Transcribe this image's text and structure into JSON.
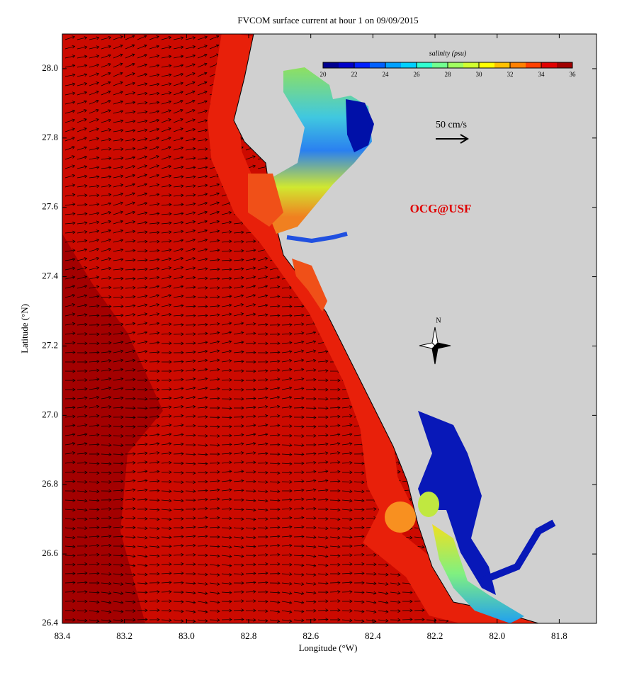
{
  "title": "FVCOM surface current at hour 1 on 09/09/2015",
  "map": {
    "xlabel": "Longitude (°W)",
    "ylabel": "Latitude (°N)",
    "xlim": [
      83.4,
      81.68
    ],
    "ylim": [
      26.4,
      28.1
    ],
    "xticks": [
      83.4,
      83.2,
      {
        "value": 83.0,
        "label": "83.0"
      },
      82.8,
      82.6,
      82.4,
      82.2,
      {
        "value": 82.0,
        "label": "82.0"
      },
      81.8
    ],
    "yticks": [
      26.4,
      26.6,
      26.8,
      {
        "value": 27.0,
        "label": "27.0"
      },
      27.2,
      27.4,
      27.6,
      27.8,
      {
        "value": 28.0,
        "label": "28.0"
      }
    ]
  },
  "colorbar": {
    "label": "salinity (psu)",
    "range": [
      20,
      36
    ],
    "ticks": [
      20,
      22,
      24,
      26,
      28,
      30,
      32,
      34,
      36
    ],
    "colors": [
      "#00008f",
      "#0000c8",
      "#0020ff",
      "#0060ff",
      "#00a0ff",
      "#00d0ff",
      "#30ffd0",
      "#70ff90",
      "#a0ff60",
      "#d0ff30",
      "#ffff00",
      "#ffc000",
      "#ff8000",
      "#ff4000",
      "#e00000",
      "#a00000"
    ]
  },
  "annotations": {
    "scale": "50 cm/s",
    "credit": "OCG@USF",
    "north": "N"
  }
}
